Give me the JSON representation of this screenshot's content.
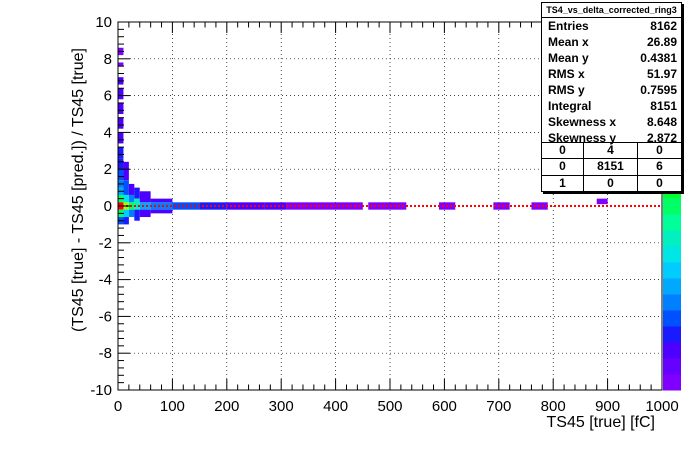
{
  "chart_data": {
    "type": "heatmap",
    "title": "",
    "xlabel": "TS45 [true] [fC]",
    "ylabel": "(TS45 [true] - TS45 [pred.]) / TS45 [true]",
    "xlim": [
      0,
      1000
    ],
    "ylim": [
      -10,
      10
    ],
    "xticks": [
      "0",
      "100",
      "200",
      "300",
      "400",
      "500",
      "600",
      "700",
      "800",
      "900",
      "1000"
    ],
    "yticks": [
      "-10",
      "-8",
      "-6",
      "-4",
      "-2",
      "0",
      "2",
      "4",
      "6",
      "8",
      "10"
    ],
    "grid": true,
    "z_scale": "log",
    "cells": [
      {
        "x0": 0,
        "x1": 10,
        "y0": 8.2,
        "y1": 8.6,
        "z": 1
      },
      {
        "x0": 0,
        "x1": 10,
        "y0": 7.6,
        "y1": 7.8,
        "z": 1
      },
      {
        "x0": 0,
        "x1": 10,
        "y0": 6.6,
        "y1": 7.0,
        "z": 2
      },
      {
        "x0": 0,
        "x1": 10,
        "y0": 5.8,
        "y1": 6.4,
        "z": 2
      },
      {
        "x0": 0,
        "x1": 10,
        "y0": 5.0,
        "y1": 5.6,
        "z": 2
      },
      {
        "x0": 0,
        "x1": 10,
        "y0": 4.2,
        "y1": 4.8,
        "z": 2
      },
      {
        "x0": 0,
        "x1": 10,
        "y0": 3.4,
        "y1": 4.0,
        "z": 2
      },
      {
        "x0": 0,
        "x1": 10,
        "y0": 2.6,
        "y1": 3.2,
        "z": 3
      },
      {
        "x0": 0,
        "x1": 10,
        "y0": 2.0,
        "y1": 2.6,
        "z": 3
      },
      {
        "x0": 0,
        "x1": 10,
        "y0": 1.4,
        "y1": 2.0,
        "z": 4
      },
      {
        "x0": 0,
        "x1": 10,
        "y0": 1.0,
        "y1": 1.4,
        "z": 6
      },
      {
        "x0": 0,
        "x1": 10,
        "y0": 0.6,
        "y1": 1.0,
        "z": 12
      },
      {
        "x0": 0,
        "x1": 10,
        "y0": 0.2,
        "y1": 0.6,
        "z": 80
      },
      {
        "x0": 0,
        "x1": 10,
        "y0": -0.2,
        "y1": 0.2,
        "z": 5000
      },
      {
        "x0": 0,
        "x1": 10,
        "y0": -0.6,
        "y1": -0.2,
        "z": 60
      },
      {
        "x0": 0,
        "x1": 10,
        "y0": -1.0,
        "y1": -0.6,
        "z": 4
      },
      {
        "x0": 10,
        "x1": 20,
        "y0": 1.4,
        "y1": 2.4,
        "z": 2
      },
      {
        "x0": 10,
        "x1": 20,
        "y0": 0.6,
        "y1": 1.4,
        "z": 4
      },
      {
        "x0": 10,
        "x1": 20,
        "y0": 0.2,
        "y1": 0.6,
        "z": 20
      },
      {
        "x0": 10,
        "x1": 20,
        "y0": -0.2,
        "y1": 0.2,
        "z": 300
      },
      {
        "x0": 10,
        "x1": 20,
        "y0": -0.6,
        "y1": -0.2,
        "z": 15
      },
      {
        "x0": 10,
        "x1": 20,
        "y0": -1.0,
        "y1": -0.6,
        "z": 3
      },
      {
        "x0": 20,
        "x1": 30,
        "y0": 0.6,
        "y1": 1.2,
        "z": 2
      },
      {
        "x0": 20,
        "x1": 30,
        "y0": 0.2,
        "y1": 0.6,
        "z": 8
      },
      {
        "x0": 20,
        "x1": 30,
        "y0": -0.2,
        "y1": 0.2,
        "z": 60
      },
      {
        "x0": 20,
        "x1": 30,
        "y0": -0.6,
        "y1": -0.2,
        "z": 8
      },
      {
        "x0": 30,
        "x1": 40,
        "y0": 0.4,
        "y1": 1.0,
        "z": 3
      },
      {
        "x0": 30,
        "x1": 40,
        "y0": -0.2,
        "y1": 0.4,
        "z": 30
      },
      {
        "x0": 30,
        "x1": 40,
        "y0": -0.8,
        "y1": -0.2,
        "z": 3
      },
      {
        "x0": 40,
        "x1": 60,
        "y0": 0.2,
        "y1": 0.8,
        "z": 2
      },
      {
        "x0": 40,
        "x1": 60,
        "y0": -0.2,
        "y1": 0.2,
        "z": 12
      },
      {
        "x0": 40,
        "x1": 60,
        "y0": -0.6,
        "y1": -0.2,
        "z": 2
      },
      {
        "x0": 60,
        "x1": 100,
        "y0": 0.2,
        "y1": 0.4,
        "z": 2
      },
      {
        "x0": 60,
        "x1": 100,
        "y0": -0.2,
        "y1": 0.2,
        "z": 6
      },
      {
        "x0": 60,
        "x1": 100,
        "y0": -0.4,
        "y1": -0.2,
        "z": 2
      },
      {
        "x0": 100,
        "x1": 150,
        "y0": -0.2,
        "y1": 0.2,
        "z": 4
      },
      {
        "x0": 150,
        "x1": 200,
        "y0": -0.2,
        "y1": 0.2,
        "z": 3
      },
      {
        "x0": 200,
        "x1": 270,
        "y0": -0.2,
        "y1": 0.2,
        "z": 2
      },
      {
        "x0": 270,
        "x1": 310,
        "y0": -0.2,
        "y1": 0.2,
        "z": 2
      },
      {
        "x0": 310,
        "x1": 450,
        "y0": -0.2,
        "y1": 0.2,
        "z": 1
      },
      {
        "x0": 460,
        "x1": 530,
        "y0": -0.2,
        "y1": 0.2,
        "z": 1
      },
      {
        "x0": 590,
        "x1": 620,
        "y0": -0.2,
        "y1": 0.2,
        "z": 1
      },
      {
        "x0": 690,
        "x1": 720,
        "y0": -0.2,
        "y1": 0.2,
        "z": 1
      },
      {
        "x0": 760,
        "x1": 790,
        "y0": -0.2,
        "y1": 0.2,
        "z": 1
      },
      {
        "x0": 880,
        "x1": 900,
        "y0": 0.1,
        "y1": 0.4,
        "z": 1
      }
    ],
    "fit_line": {
      "y": 0,
      "x0": 0,
      "x1": 1000,
      "color": "#ff0000",
      "style": "dotted"
    }
  },
  "stats": {
    "title": "TS4_vs_delta_corrected_ring3",
    "rows": [
      {
        "label": "Entries",
        "value": "8162"
      },
      {
        "label": "Mean x",
        "value": "26.89"
      },
      {
        "label": "Mean y",
        "value": "0.4381"
      },
      {
        "label": "RMS x",
        "value": "51.97"
      },
      {
        "label": "RMS y",
        "value": "0.7595"
      },
      {
        "label": "Integral",
        "value": "8151"
      },
      {
        "label": "Skewness x",
        "value": "8.648"
      },
      {
        "label": "Skewness y",
        "value": "2.872"
      }
    ],
    "table": [
      [
        "0",
        "4",
        "0"
      ],
      [
        "0",
        "8151",
        "6"
      ],
      [
        "1",
        "0",
        "0"
      ]
    ]
  },
  "palette": [
    "#7f00ff",
    "#6600ff",
    "#4d00ff",
    "#1a1aff",
    "#0050ff",
    "#0080ff",
    "#00a8ff",
    "#00ccff",
    "#00e6e6",
    "#00f0c0",
    "#00ff99",
    "#00ff66",
    "#00ff33",
    "#33ff00",
    "#66ff00",
    "#99ff00",
    "#ccff00",
    "#ffff00",
    "#ffcc00",
    "#ff9900",
    "#ff6600",
    "#ff3300",
    "#ff0000"
  ]
}
